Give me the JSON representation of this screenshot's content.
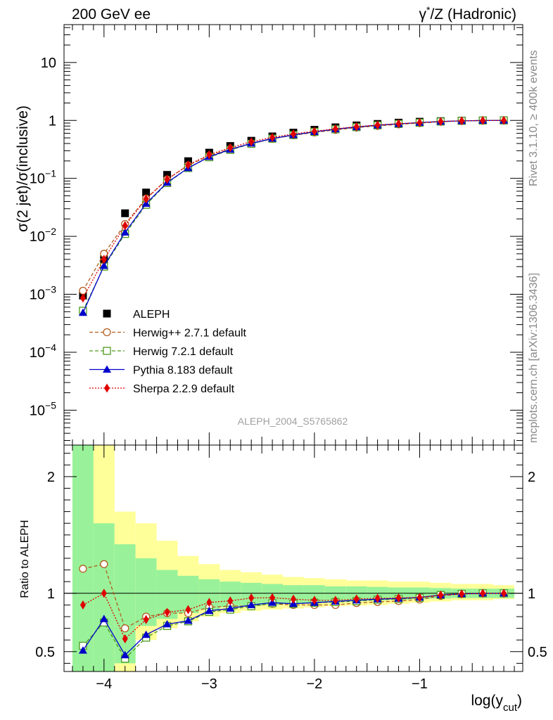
{
  "header": {
    "left": "200 GeV ee",
    "right_prefix": "γ",
    "right_sup": "*",
    "right_suffix": "/Z (Hadronic)"
  },
  "side_text": {
    "rivet": "Rivet 3.1.10, ≥ 400k events",
    "mcplots": "mcplots.cern.ch [arXiv:1306.3436]"
  },
  "watermark": "ALEPH_2004_S5765862",
  "colors": {
    "ALEPH": "#000000",
    "Herwig++ 2.7.1 default": "#b35c1e",
    "Herwig 7.2.1 default": "#4d9a1e",
    "Pythia 8.183 default": "#0000cc",
    "Sherpa 2.2.9 default": "#e00000",
    "band_inner": "#99f299",
    "band_outer": "#ffff99"
  },
  "chart_data": [
    {
      "type": "line",
      "panel": "main",
      "title": "",
      "ylabel": "σ(2 jet)/σ(inclusive)",
      "yscale": "log",
      "ylim": [
        2.5e-06,
        45
      ],
      "xlim": [
        -4.38,
        -0.02
      ],
      "y_ticks": [
        {
          "base": "10",
          "exp": "−5",
          "value": 1e-05
        },
        {
          "base": "10",
          "exp": "−4",
          "value": 0.0001
        },
        {
          "base": "10",
          "exp": "−3",
          "value": 0.001
        },
        {
          "base": "10",
          "exp": "−2",
          "value": 0.01
        },
        {
          "base": "10",
          "exp": "−1",
          "value": 0.1
        },
        {
          "base": "1",
          "exp": "",
          "value": 1
        },
        {
          "base": "10",
          "exp": "",
          "value": 10
        }
      ],
      "x": [
        -4.2,
        -4.0,
        -3.8,
        -3.6,
        -3.4,
        -3.2,
        -3.0,
        -2.8,
        -2.6,
        -2.4,
        -2.2,
        -2.0,
        -1.8,
        -1.6,
        -1.4,
        -1.2,
        -1.0,
        -0.8,
        -0.6,
        -0.4,
        -0.2
      ],
      "series": [
        {
          "name": "ALEPH",
          "style": "data",
          "marker": "square-filled",
          "values": [
            0.00095,
            0.004,
            0.025,
            0.057,
            0.115,
            0.198,
            0.278,
            0.362,
            0.446,
            0.53,
            0.615,
            0.69,
            0.76,
            0.82,
            0.87,
            0.915,
            0.95,
            0.972,
            0.988,
            0.996,
            1.0
          ]
        },
        {
          "name": "Herwig++ 2.7.1 default",
          "style": "dashed",
          "marker": "circle-open",
          "values": [
            0.00115,
            0.005,
            0.0163,
            0.045,
            0.096,
            0.168,
            0.246,
            0.322,
            0.398,
            0.482,
            0.554,
            0.62,
            0.686,
            0.752,
            0.806,
            0.855,
            0.9,
            0.951,
            0.983,
            0.996,
            1.0
          ]
        },
        {
          "name": "Herwig 7.2.1 default",
          "style": "dashed",
          "marker": "square-open",
          "values": [
            0.00052,
            0.003,
            0.011,
            0.035,
            0.083,
            0.151,
            0.232,
            0.31,
            0.395,
            0.485,
            0.56,
            0.634,
            0.703,
            0.765,
            0.822,
            0.87,
            0.913,
            0.957,
            0.983,
            0.996,
            1.0
          ]
        },
        {
          "name": "Pythia 8.183 default",
          "style": "solid",
          "marker": "triangle-filled",
          "values": [
            0.00048,
            0.0031,
            0.0117,
            0.0367,
            0.0846,
            0.1512,
            0.2363,
            0.3149,
            0.4014,
            0.4876,
            0.5596,
            0.6348,
            0.7068,
            0.7708,
            0.8265,
            0.8738,
            0.9167,
            0.9574,
            0.9831,
            0.996,
            1.0
          ]
        },
        {
          "name": "Sherpa 2.2.9 default",
          "style": "dotted",
          "marker": "diamond-filled",
          "values": [
            0.00086,
            0.004,
            0.0153,
            0.0442,
            0.0963,
            0.1703,
            0.2563,
            0.3385,
            0.4282,
            0.51,
            0.5843,
            0.6486,
            0.7144,
            0.7798,
            0.8326,
            0.8784,
            0.9158,
            0.9574,
            0.9831,
            0.996,
            1.0
          ]
        }
      ],
      "legend": {
        "placement": "lower-left",
        "entries": [
          "ALEPH",
          "Herwig++ 2.7.1 default",
          "Herwig 7.2.1 default",
          "Pythia 8.183 default",
          "Sherpa 2.2.9 default"
        ]
      }
    },
    {
      "type": "line",
      "panel": "ratio",
      "title": "",
      "ylabel": "Ratio to ALEPH",
      "xlabel_main": "log(y",
      "xlabel_sub": "cut",
      "xlabel_close": ")",
      "yscale": "linear",
      "ylim": [
        0.33,
        2.27
      ],
      "xlim": [
        -4.38,
        -0.02
      ],
      "y_ticks": [
        {
          "label": "0.5",
          "value": 0.5
        },
        {
          "label": "1",
          "value": 1
        },
        {
          "label": "2",
          "value": 2
        }
      ],
      "x_ticks": [
        {
          "label": "−4",
          "value": -4
        },
        {
          "label": "−3",
          "value": -3
        },
        {
          "label": "−2",
          "value": -2
        },
        {
          "label": "−1",
          "value": -1
        }
      ],
      "reference_line": 1,
      "x": [
        -4.2,
        -4.0,
        -3.8,
        -3.6,
        -3.4,
        -3.2,
        -3.0,
        -2.8,
        -2.6,
        -2.4,
        -2.2,
        -2.0,
        -1.8,
        -1.6,
        -1.4,
        -1.2,
        -1.0,
        -0.8,
        -0.6,
        -0.4,
        -0.2
      ],
      "bins": [
        [
          -4.3,
          -4.1
        ],
        [
          -4.1,
          -3.9
        ],
        [
          -3.9,
          -3.7
        ],
        [
          -3.7,
          -3.5
        ],
        [
          -3.5,
          -3.3
        ],
        [
          -3.3,
          -3.1
        ],
        [
          -3.1,
          -2.9
        ],
        [
          -2.9,
          -2.7
        ],
        [
          -2.7,
          -2.5
        ],
        [
          -2.5,
          -2.3
        ],
        [
          -2.3,
          -2.1
        ],
        [
          -2.1,
          -1.9
        ],
        [
          -1.9,
          -1.7
        ],
        [
          -1.7,
          -1.5
        ],
        [
          -1.5,
          -1.3
        ],
        [
          -1.3,
          -1.1
        ],
        [
          -1.1,
          -0.9
        ],
        [
          -0.9,
          -0.7
        ],
        [
          -0.7,
          -0.5
        ],
        [
          -0.5,
          -0.3
        ],
        [
          -0.3,
          -0.1
        ]
      ],
      "band_inner": [
        [
          0.2,
          2.5
        ],
        [
          0.3,
          1.6
        ],
        [
          0.4,
          1.42
        ],
        [
          0.72,
          1.3
        ],
        [
          0.78,
          1.2
        ],
        [
          0.83,
          1.15
        ],
        [
          0.86,
          1.12
        ],
        [
          0.88,
          1.1
        ],
        [
          0.89,
          1.09
        ],
        [
          0.9,
          1.08
        ],
        [
          0.91,
          1.07
        ],
        [
          0.92,
          1.07
        ],
        [
          0.93,
          1.06
        ],
        [
          0.935,
          1.06
        ],
        [
          0.94,
          1.055
        ],
        [
          0.945,
          1.05
        ],
        [
          0.95,
          1.05
        ],
        [
          0.955,
          1.045
        ],
        [
          0.96,
          1.04
        ],
        [
          0.96,
          1.04
        ],
        [
          0.96,
          1.04
        ]
      ],
      "band_outer": [
        [
          0.2,
          2.5
        ],
        [
          0.2,
          2.5
        ],
        [
          0.33,
          1.7
        ],
        [
          0.6,
          1.6
        ],
        [
          0.7,
          1.45
        ],
        [
          0.76,
          1.32
        ],
        [
          0.8,
          1.25
        ],
        [
          0.83,
          1.2
        ],
        [
          0.85,
          1.18
        ],
        [
          0.86,
          1.16
        ],
        [
          0.87,
          1.14
        ],
        [
          0.88,
          1.13
        ],
        [
          0.89,
          1.12
        ],
        [
          0.895,
          1.11
        ],
        [
          0.9,
          1.11
        ],
        [
          0.91,
          1.1
        ],
        [
          0.92,
          1.1
        ],
        [
          0.93,
          1.09
        ],
        [
          0.94,
          1.08
        ],
        [
          0.94,
          1.08
        ],
        [
          0.95,
          1.07
        ]
      ],
      "series": [
        {
          "name": "Herwig++ 2.7.1 default",
          "style": "dashed",
          "marker": "circle-open",
          "values": [
            1.21,
            1.25,
            0.7,
            0.8,
            0.83,
            0.83,
            0.88,
            0.89,
            0.89,
            0.91,
            0.9,
            0.9,
            0.9,
            0.917,
            0.926,
            0.934,
            0.947,
            0.978,
            0.995,
            1.0,
            1.0
          ]
        },
        {
          "name": "Herwig 7.2.1 default",
          "style": "dashed",
          "marker": "square-open",
          "values": [
            0.55,
            0.75,
            0.44,
            0.62,
            0.72,
            0.76,
            0.84,
            0.86,
            0.89,
            0.915,
            0.91,
            0.919,
            0.925,
            0.933,
            0.945,
            0.951,
            0.961,
            0.985,
            0.995,
            1.0,
            1.0
          ]
        },
        {
          "name": "Pythia 8.183 default",
          "style": "solid",
          "marker": "triangle-filled",
          "values": [
            0.51,
            0.78,
            0.47,
            0.645,
            0.735,
            0.765,
            0.85,
            0.87,
            0.9,
            0.92,
            0.91,
            0.92,
            0.93,
            0.94,
            0.95,
            0.955,
            0.965,
            0.985,
            0.995,
            1.0,
            1.0
          ]
        },
        {
          "name": "Sherpa 2.2.9 default",
          "style": "dotted",
          "marker": "diamond-filled",
          "values": [
            0.9,
            1.0,
            0.61,
            0.775,
            0.837,
            0.86,
            0.922,
            0.935,
            0.96,
            0.962,
            0.95,
            0.94,
            0.94,
            0.951,
            0.957,
            0.96,
            0.964,
            0.985,
            0.995,
            1.0,
            1.0
          ]
        }
      ]
    }
  ]
}
